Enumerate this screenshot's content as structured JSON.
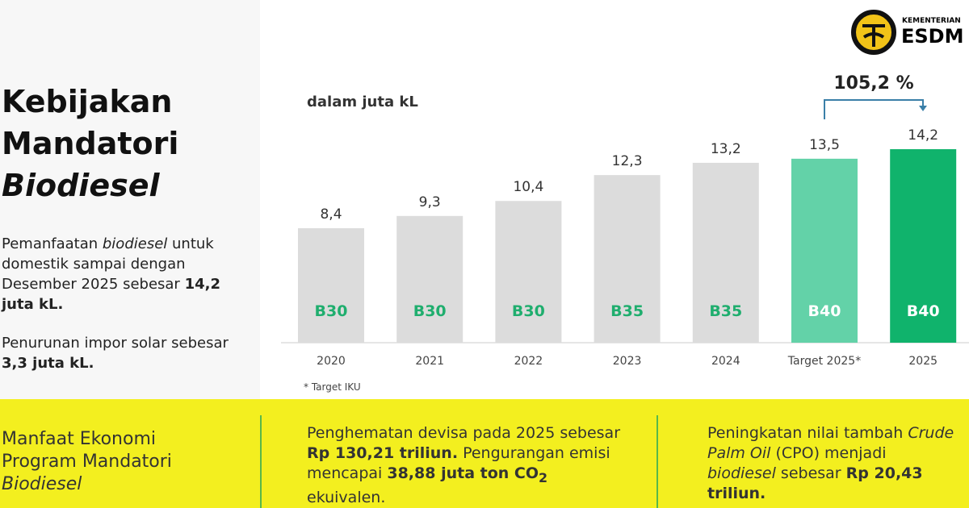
{
  "logo": {
    "top": "KEMENTERIAN",
    "main": "ESDM"
  },
  "left_panel": {
    "title": [
      "Kebijakan",
      "Mandatori",
      "Biodiesel"
    ],
    "paragraph_1": [
      "Pemanfaatan ",
      "biodiesel",
      " untuk domestik sampai dengan Desember 2025 sebesar ",
      "14,2 juta kL."
    ],
    "paragraph_2": [
      "Penurunan impor solar sebesar ",
      "3,3 juta kL."
    ]
  },
  "chart_data": {
    "type": "bar",
    "subtitle": "dalam juta kL",
    "categories": [
      "2020",
      "2021",
      "2022",
      "2023",
      "2024",
      "Target 2025*",
      "2025"
    ],
    "values": [
      8.4,
      9.3,
      10.4,
      12.3,
      13.2,
      13.5,
      14.2
    ],
    "value_labels": [
      "8,4",
      "9,3",
      "10,4",
      "12,3",
      "13,2",
      "13,5",
      "14,2"
    ],
    "blend_labels": [
      "B30",
      "B30",
      "B30",
      "B35",
      "B35",
      "B40",
      "B40"
    ],
    "colors": [
      "#dcdcdc",
      "#dcdcdc",
      "#dcdcdc",
      "#dcdcdc",
      "#dcdcdc",
      "#63d2a8",
      "#10b36c"
    ],
    "blend_label_colors": [
      "#1fae6e",
      "#1fae6e",
      "#1fae6e",
      "#1fae6e",
      "#1fae6e",
      "#ffffff",
      "#ffffff"
    ],
    "annotation": "105,2 %",
    "footnote": "* Target IKU"
  },
  "bottom_band": {
    "column_1": [
      "Manfaat Ekonomi",
      "Program Mandatori",
      "Biodiesel"
    ],
    "column_2": [
      "Penghematan devisa pada 2025 sebesar ",
      "Rp 130,21 triliun.",
      " Pengurangan emisi mencapai ",
      "38,88 juta ton CO",
      "2",
      " ekuivalen."
    ],
    "column_3": [
      "Peningkatan nilai tambah ",
      "Crude Palm Oil",
      " (CPO) menjadi ",
      "biodiesel",
      " sebesar ",
      "Rp 20,43 triliun."
    ]
  }
}
